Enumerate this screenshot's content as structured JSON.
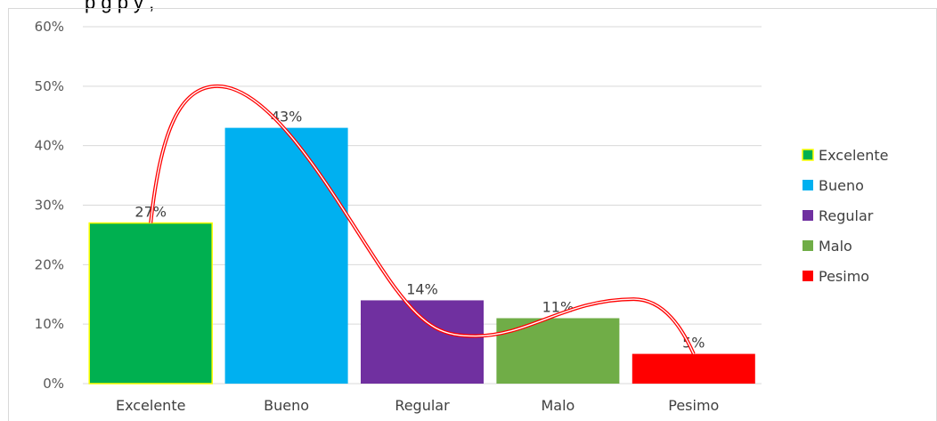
{
  "chart_data": {
    "type": "bar",
    "title_fragment": "p                                   g                  p  y    ,",
    "categories": [
      "Excelente",
      "Bueno",
      "Regular",
      "Malo",
      "Pesimo"
    ],
    "values": [
      27,
      43,
      14,
      11,
      5
    ],
    "value_labels": [
      "27%",
      "43%",
      "14%",
      "11%",
      "5%"
    ],
    "ylim": [
      0,
      60
    ],
    "yticks": [
      0,
      10,
      20,
      30,
      40,
      50,
      60
    ],
    "ytick_labels": [
      "0%",
      "10%",
      "20%",
      "30%",
      "40%",
      "50%",
      "60%"
    ],
    "colors": [
      "#00b050",
      "#00b0f0",
      "#7030a0",
      "#70ad47",
      "#ff0000"
    ],
    "first_bar_outline": "#ffff00",
    "grid": true,
    "legend": {
      "placement": "right",
      "entries": [
        "Excelente",
        "Bueno",
        "Regular",
        "Malo",
        "Pesimo"
      ]
    },
    "annotation_curve_color": "#ff0000"
  }
}
